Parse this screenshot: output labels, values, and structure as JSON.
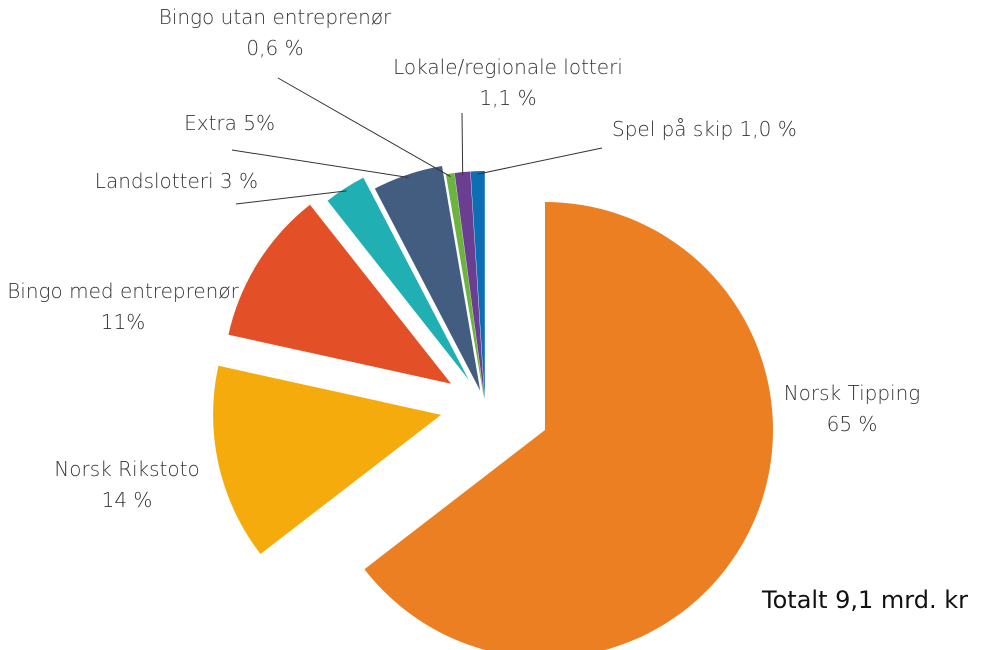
{
  "chart_data": {
    "type": "pie",
    "categories": [
      "Norsk Tipping",
      "Norsk Rikstoto",
      "Bingo med entreprenør",
      "Landslotteri",
      "Extra",
      "Bingo utan entreprenør",
      "Lokale/regionale lotteri",
      "Spel på skip"
    ],
    "values": [
      65,
      14,
      11,
      3,
      5,
      0.6,
      1.1,
      1.0
    ],
    "value_labels": [
      "65 %",
      "14 %",
      "11%",
      "3 %",
      "5%",
      "0,6 %",
      "1,1 %",
      "1,0 %"
    ],
    "colors": [
      "#ec7f22",
      "#f6ab0d",
      "#e34f26",
      "#20b0b4",
      "#435d80",
      "#6db33f",
      "#6a3e91",
      "#0d6fb3"
    ],
    "annotation": "Totalt 9,1 mrd. kr"
  }
}
